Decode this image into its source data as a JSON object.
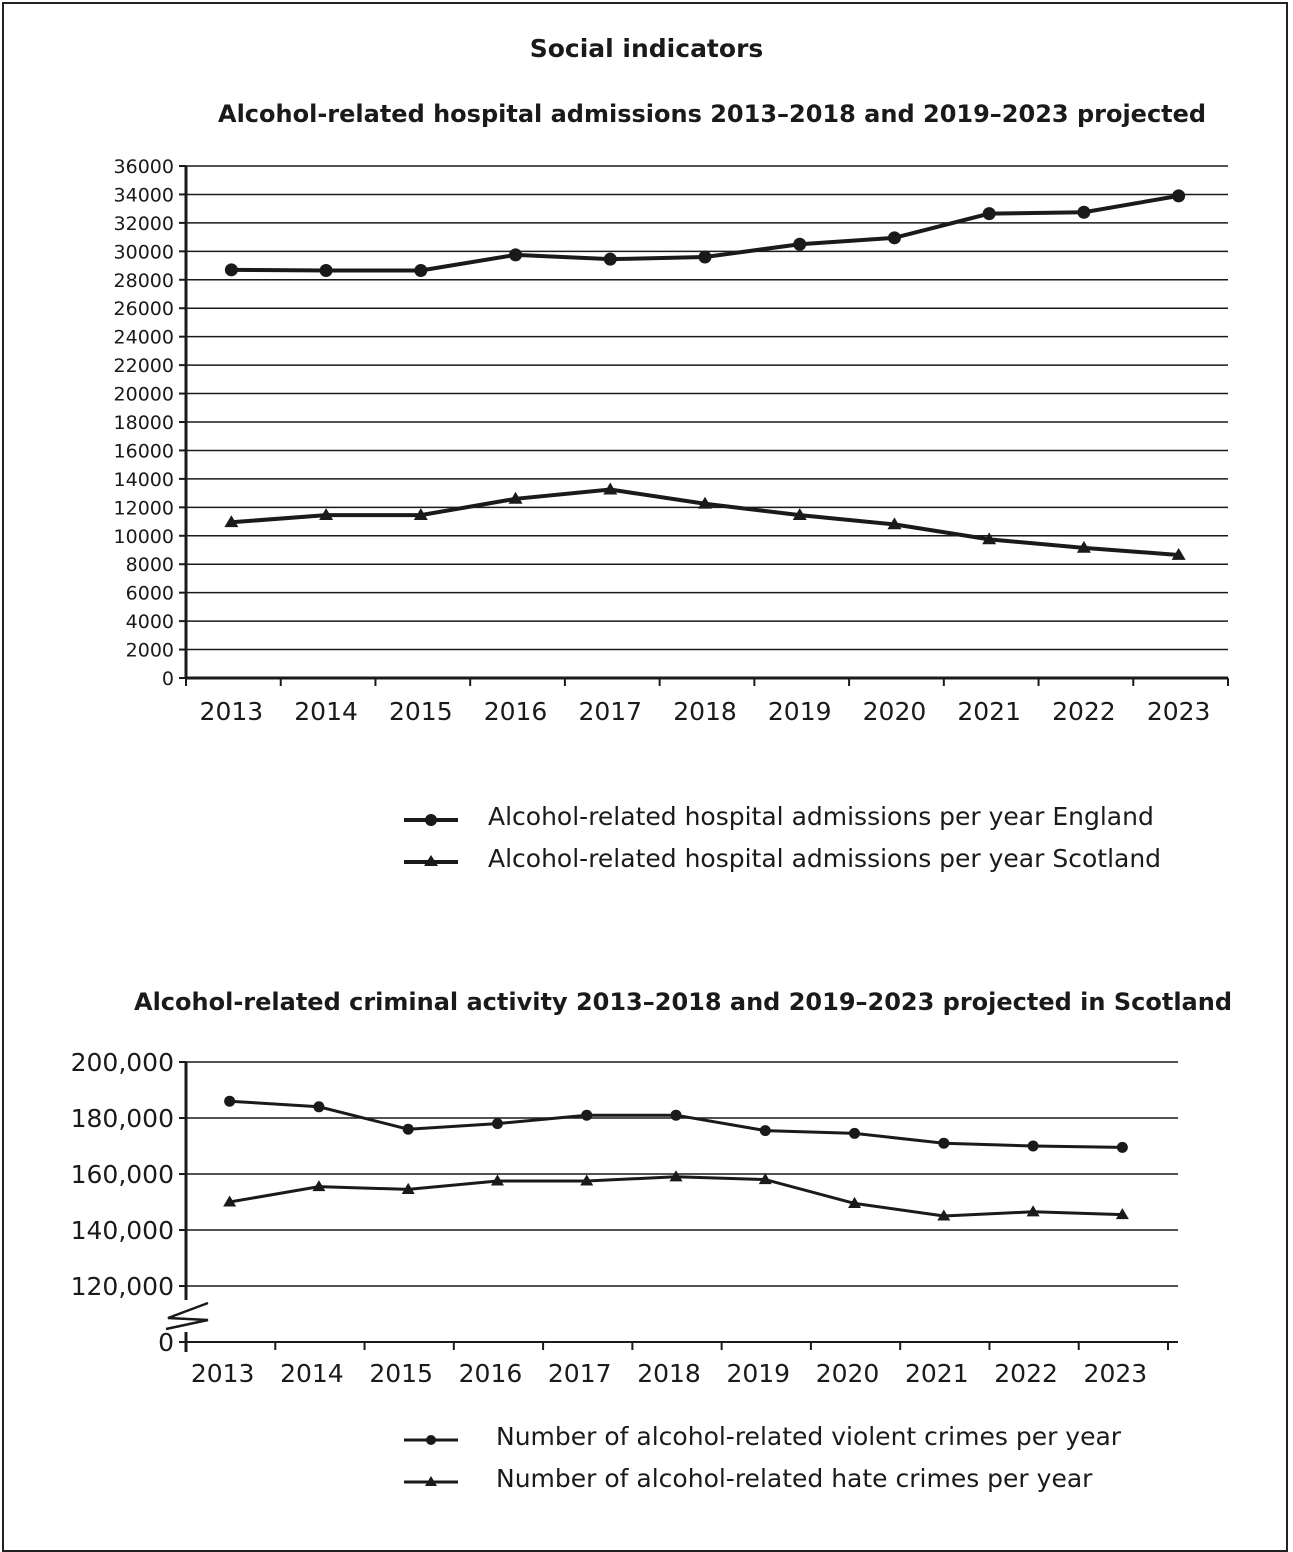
{
  "page": {
    "heading": "Social indicators"
  },
  "chart_data": [
    {
      "type": "line",
      "title": "Alcohol-related hospital admissions 2013–2018 and 2019–2023 projected",
      "xlabel": "",
      "ylabel": "",
      "x": [
        "2013",
        "2014",
        "2015",
        "2016",
        "2017",
        "2018",
        "2019",
        "2020",
        "2021",
        "2022",
        "2023"
      ],
      "ylim": [
        0,
        36000
      ],
      "yticks": [
        "0",
        "2000",
        "4000",
        "6000",
        "8000",
        "10000",
        "12000",
        "14000",
        "16000",
        "18000",
        "20000",
        "22000",
        "24000",
        "26000",
        "28000",
        "30000",
        "32000",
        "34000",
        "36000"
      ],
      "grid": true,
      "legend": "bottom",
      "series": [
        {
          "name": "Alcohol-related hospital admissions per year England",
          "marker": "circle",
          "values": [
            28700,
            28650,
            28650,
            29750,
            29450,
            29600,
            30500,
            30950,
            32650,
            32750,
            33900
          ]
        },
        {
          "name": "Alcohol-related hospital admissions per year Scotland",
          "marker": "triangle",
          "values": [
            10950,
            11450,
            11450,
            12600,
            13250,
            12250,
            11450,
            10800,
            9750,
            9150,
            8650
          ]
        }
      ]
    },
    {
      "type": "line",
      "title": "Alcohol-related criminal activity 2013–2018 and 2019–2023 projected in Scotland",
      "xlabel": "",
      "ylabel": "",
      "x": [
        "2013",
        "2014",
        "2015",
        "2016",
        "2017",
        "2018",
        "2019",
        "2020",
        "2021",
        "2022",
        "2023"
      ],
      "ylim": [
        100000,
        200000
      ],
      "axis_break": true,
      "yticks": [
        "0",
        "120,000",
        "140,000",
        "160,000",
        "180,000",
        "200,000"
      ],
      "grid": true,
      "legend": "bottom",
      "series": [
        {
          "name": "Number of alcohol-related violent crimes per year",
          "marker": "circle",
          "values": [
            186000,
            184000,
            176000,
            178000,
            181000,
            181000,
            175500,
            174500,
            171000,
            170000,
            169500
          ]
        },
        {
          "name": "Number of alcohol-related hate crimes per year",
          "marker": "triangle",
          "values": [
            150000,
            155500,
            154500,
            157500,
            157500,
            159000,
            158000,
            149500,
            145000,
            146500,
            145500
          ]
        }
      ]
    }
  ]
}
